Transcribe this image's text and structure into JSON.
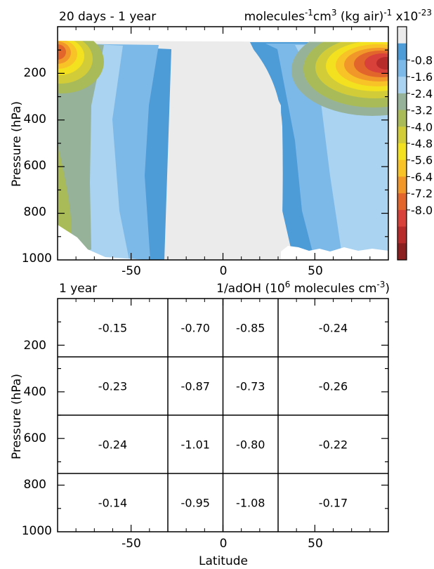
{
  "figure": {
    "xlabel": "Latitude"
  },
  "top_panel": {
    "title_left": "20 days - 1 year",
    "title_right": {
      "pre": "molecules",
      "sup1": "-1",
      "mid1": "cm",
      "sup2": "3",
      "mid2": " (kg air)",
      "sup3": "-1",
      "mid3": " x10",
      "sup4": "-23"
    },
    "ylabel": "Pressure (hPa)",
    "x_ticks": [
      "-50",
      "0",
      "50"
    ],
    "y_ticks": [
      "200",
      "400",
      "600",
      "800",
      "1000"
    ],
    "colorbar_ticks": [
      "-0.8",
      "-1.6",
      "-2.4",
      "-3.2",
      "-4.0",
      "-4.8",
      "-5.6",
      "-6.4",
      "-7.2",
      "-8.0"
    ],
    "colorbar_colors": [
      "#ebebeb",
      "#4d9bd7",
      "#7cb9e8",
      "#a9d3f0",
      "#96b299",
      "#a9bb59",
      "#d2cc39",
      "#f3e11f",
      "#f8c326",
      "#f1972a",
      "#e2652c",
      "#d8413a",
      "#b82b2b",
      "#8b1e1e"
    ]
  },
  "bottom_panel": {
    "title_left": "1 year",
    "title_right": {
      "pre": "1/adOH (10",
      "sup1": "6",
      "post": " molecules  cm",
      "sup2": "-3",
      "end": ")"
    },
    "ylabel": "Pressure (hPa)",
    "x_ticks": [
      "-50",
      "0",
      "50"
    ],
    "y_ticks": [
      "200",
      "400",
      "600",
      "800",
      "1000"
    ]
  },
  "chart_data": [
    {
      "type": "heatmap",
      "title": "20 days - 1 year",
      "units": "molecules-1 cm3 (kg air)-1 x10-23",
      "xlabel": "",
      "ylabel": "Pressure (hPa)",
      "xlim": [
        -90,
        90
      ],
      "ylim": [
        1000,
        0
      ],
      "x_ticks": [
        -50,
        0,
        50
      ],
      "y_ticks": [
        200,
        400,
        600,
        800,
        1000
      ],
      "colorbar": {
        "levels": [
          -0.8,
          -1.6,
          -2.4,
          -3.2,
          -4.0,
          -4.8,
          -5.6,
          -6.4,
          -7.2,
          -8.0
        ]
      },
      "features": [
        {
          "region": "tropics",
          "lat_range": [
            -20,
            25
          ],
          "value": "near 0 (grey)"
        },
        {
          "region": "NH polar upper troposphere",
          "lat": 80,
          "pressure": 150,
          "value": -8.0
        },
        {
          "region": "SH polar upper troposphere",
          "lat": -85,
          "pressure": 120,
          "value": -6.4
        }
      ]
    },
    {
      "type": "table",
      "title": "1 year",
      "units": "1/adOH (10^6 molecules cm^-3)",
      "xlabel": "Latitude",
      "ylabel": "Pressure (hPa)",
      "x_ticks": [
        -50,
        0,
        50
      ],
      "y_ticks": [
        200,
        400,
        600,
        800,
        1000
      ],
      "lat_boundaries": [
        -90,
        -30,
        0,
        30,
        90
      ],
      "pressure_boundaries": [
        0,
        250,
        500,
        750,
        1000
      ],
      "rows": [
        [
          "-0.15",
          "-0.70",
          "-0.85",
          "-0.24"
        ],
        [
          "-0.23",
          "-0.87",
          "-0.73",
          "-0.26"
        ],
        [
          "-0.24",
          "-1.01",
          "-0.80",
          "-0.22"
        ],
        [
          "-0.14",
          "-0.95",
          "-1.08",
          "-0.17"
        ]
      ]
    }
  ]
}
